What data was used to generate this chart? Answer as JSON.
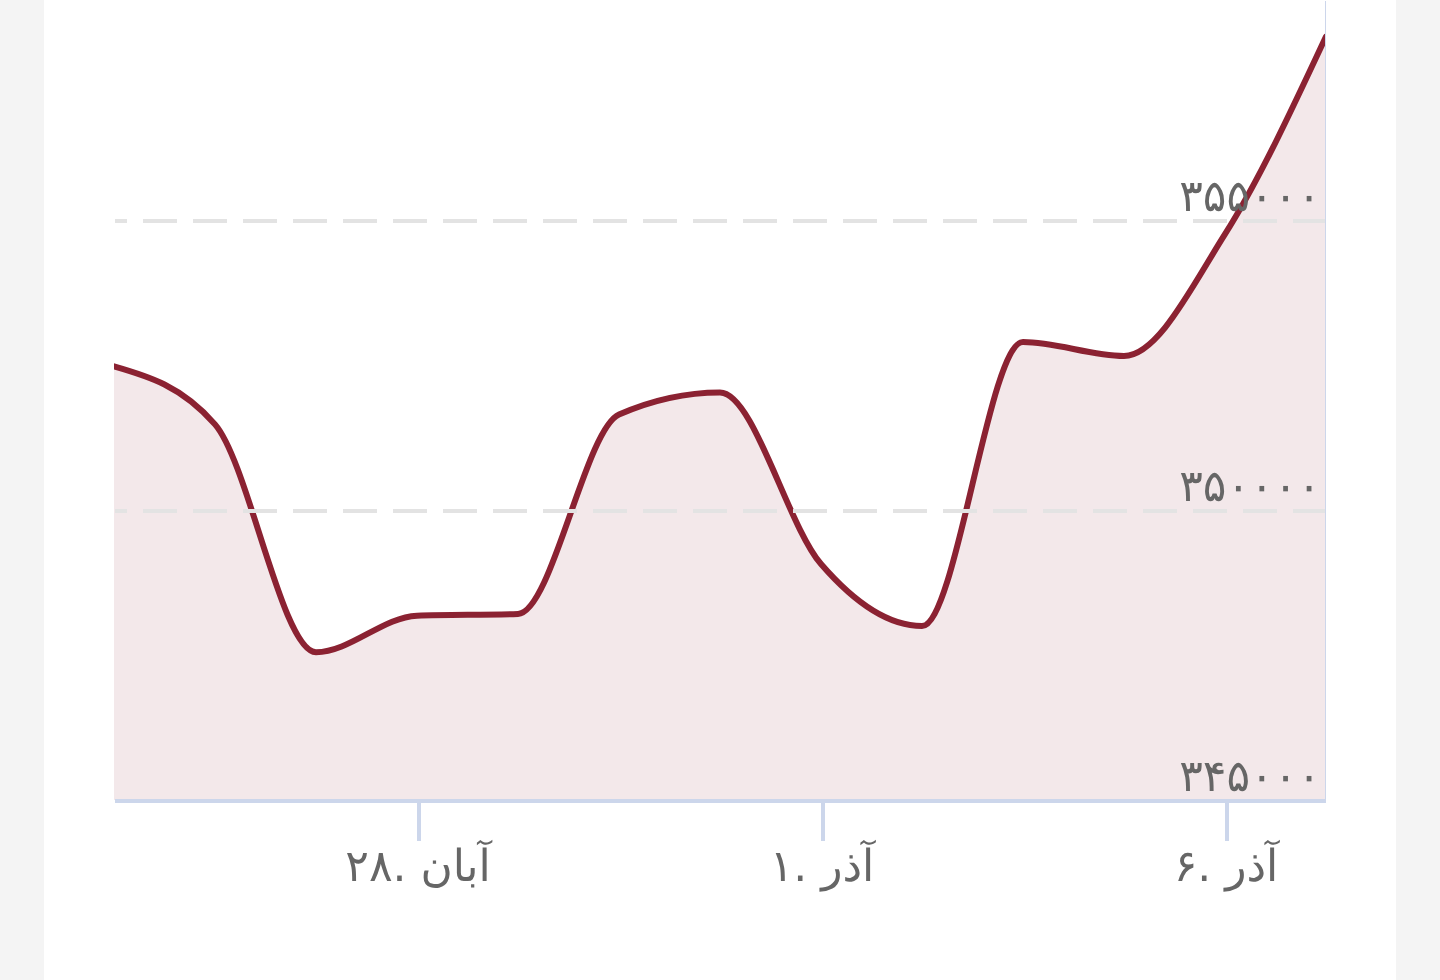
{
  "chart_data": {
    "type": "area",
    "categories": [
      null,
      null,
      null,
      "۲۸. آبان",
      null,
      null,
      null,
      "۱. آذر",
      null,
      null,
      null,
      "۶. آذر",
      null
    ],
    "values": [
      352480,
      351480,
      347550,
      348180,
      348210,
      351650,
      352030,
      349070,
      348000,
      352900,
      352660,
      354760,
      358170
    ],
    "color": "#8b2232",
    "ylim": [
      345000,
      358800
    ],
    "yticks": [
      {
        "value": 345000,
        "label": "۳۴۵۰۰۰"
      },
      {
        "value": 350000,
        "label": "۳۵۰۰۰۰"
      },
      {
        "value": 355000,
        "label": "۳۵۵۰۰۰"
      }
    ],
    "grid": "y"
  }
}
